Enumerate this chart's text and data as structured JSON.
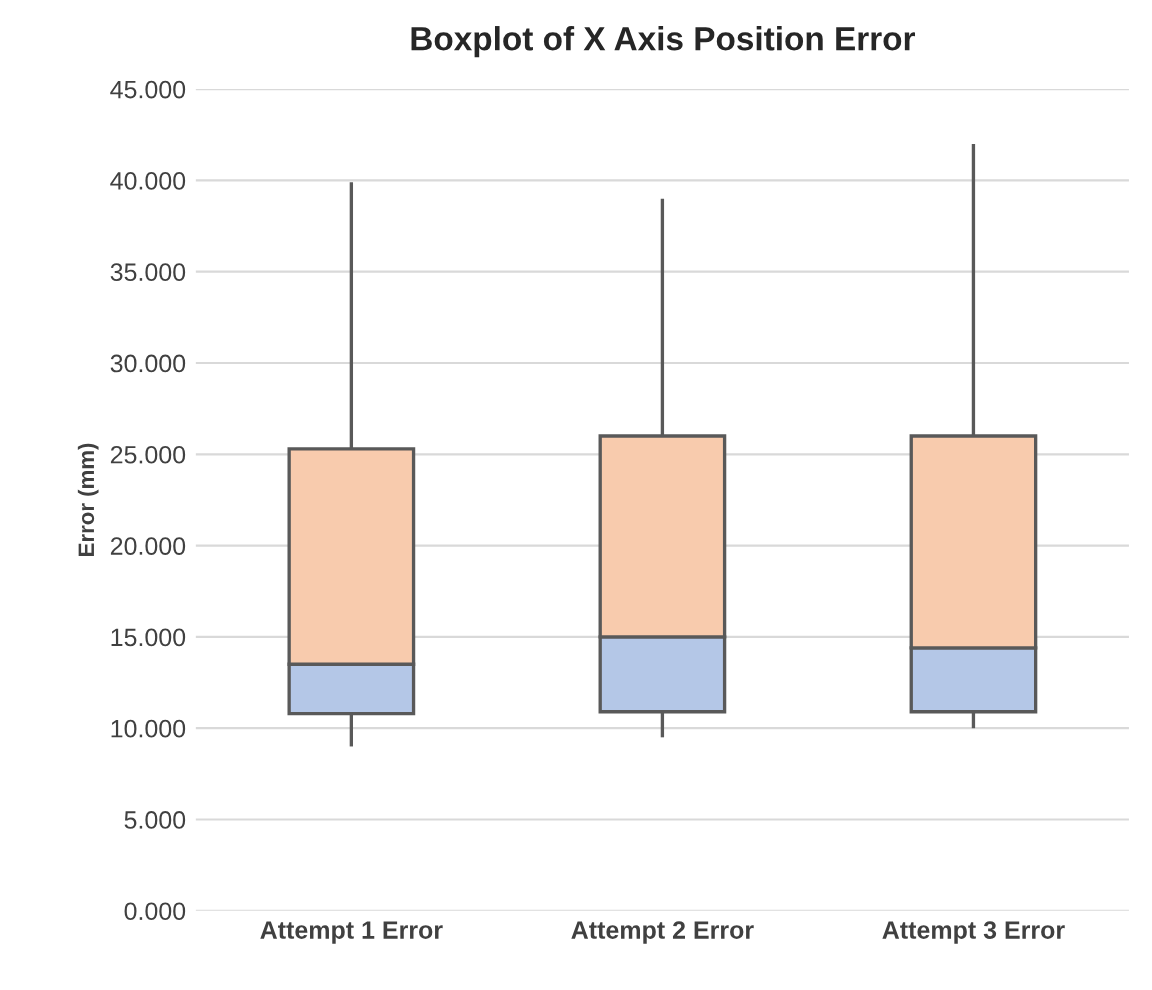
{
  "chart_data": {
    "type": "box",
    "title": "Boxplot of X Axis Position Error",
    "ylabel": "Error (mm)",
    "categories": [
      "Attempt 1 Error",
      "Attempt 2 Error",
      "Attempt 3 Error"
    ],
    "boxes": [
      {
        "low": 9.0,
        "q1": 10.8,
        "median": 13.5,
        "q3": 25.3,
        "high": 39.9
      },
      {
        "low": 9.5,
        "q1": 10.9,
        "median": 15.0,
        "q3": 26.0,
        "high": 39.0
      },
      {
        "low": 10.0,
        "q1": 10.9,
        "median": 14.4,
        "q3": 26.0,
        "high": 42.0
      }
    ],
    "colors": [
      [
        "#b4c7e7",
        "#f8cbad"
      ],
      [
        "#b4c7e7",
        "#f8cbad"
      ],
      [
        "#b4c7e7",
        "#f8cbad"
      ]
    ],
    "ylim": [
      0,
      45
    ],
    "yticks": [
      {
        "value": 0,
        "label": "0.000"
      },
      {
        "value": 5,
        "label": "5.000"
      },
      {
        "value": 10,
        "label": "10.000"
      },
      {
        "value": 15,
        "label": "15.000"
      },
      {
        "value": 20,
        "label": "20.000"
      },
      {
        "value": 25,
        "label": "25.000"
      },
      {
        "value": 30,
        "label": "30.000"
      },
      {
        "value": 35,
        "label": "35.000"
      },
      {
        "value": 40,
        "label": "40.000"
      },
      {
        "value": 45,
        "label": "45.000"
      }
    ],
    "grid": "y",
    "legend": false
  }
}
